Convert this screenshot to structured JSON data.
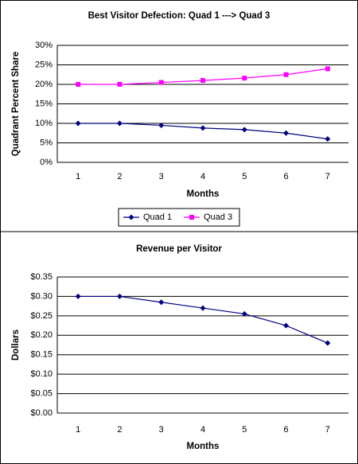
{
  "chart_data": [
    {
      "type": "line",
      "title": "Best Visitor Defection: Quad 1 ---> Quad 3",
      "y_label": "Quadrant Percent Share",
      "x_label": "Months",
      "categories": [
        "1",
        "2",
        "3",
        "4",
        "5",
        "6",
        "7"
      ],
      "series": [
        {
          "name": "Quad 1",
          "color": "#000080",
          "marker": "diamond",
          "values": [
            10,
            10,
            9.5,
            8.8,
            8.4,
            7.5,
            6
          ]
        },
        {
          "name": "Quad 3",
          "color": "#ff00ff",
          "marker": "square",
          "values": [
            20,
            20,
            20.5,
            21,
            21.6,
            22.5,
            24
          ]
        }
      ],
      "ylim": [
        0,
        30
      ],
      "yticks": [
        {
          "value": 0,
          "label": "0%"
        },
        {
          "value": 5,
          "label": "5%"
        },
        {
          "value": 10,
          "label": "10%"
        },
        {
          "value": 15,
          "label": "15%"
        },
        {
          "value": 20,
          "label": "20%"
        },
        {
          "value": 25,
          "label": "25%"
        },
        {
          "value": 30,
          "label": "30%"
        }
      ],
      "grid": true,
      "legend": "bottom"
    },
    {
      "type": "line",
      "title": "Revenue per Visitor",
      "y_label": "Dollars",
      "x_label": "Months",
      "categories": [
        "1",
        "2",
        "3",
        "4",
        "5",
        "6",
        "7"
      ],
      "series": [
        {
          "color": "#000080",
          "marker": "diamond",
          "values": [
            0.3,
            0.3,
            0.285,
            0.27,
            0.255,
            0.225,
            0.18
          ]
        }
      ],
      "ylim": [
        0,
        0.35
      ],
      "yticks": [
        {
          "value": 0,
          "label": "$0.00"
        },
        {
          "value": 0.05,
          "label": "$0.05"
        },
        {
          "value": 0.1,
          "label": "$0.10"
        },
        {
          "value": 0.15,
          "label": "$0.15"
        },
        {
          "value": 0.2,
          "label": "$0.20"
        },
        {
          "value": 0.25,
          "label": "$0.25"
        },
        {
          "value": 0.3,
          "label": "$0.30"
        },
        {
          "value": 0.35,
          "label": "$0.35"
        }
      ],
      "grid": true
    }
  ]
}
